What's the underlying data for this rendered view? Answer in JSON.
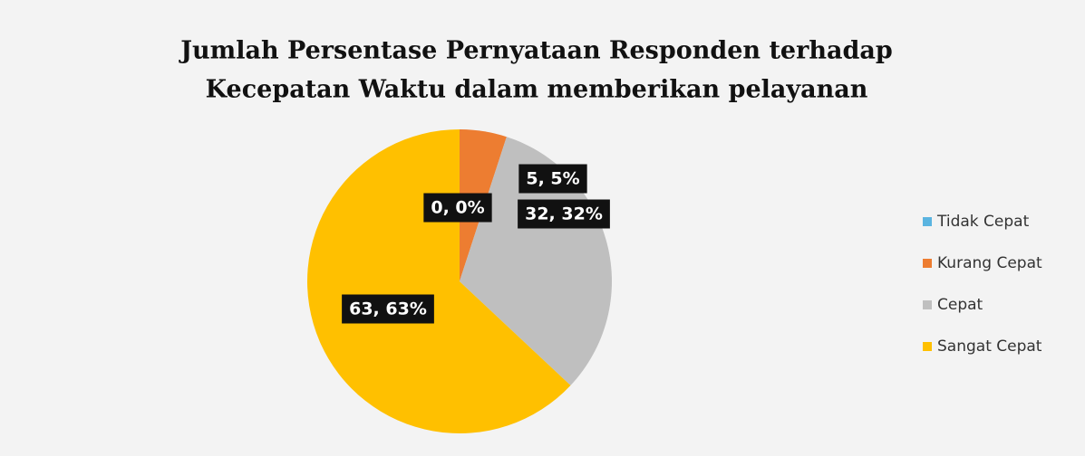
{
  "chart_data": {
    "type": "pie",
    "title": [
      "Jumlah Persentase Pernyataan Responden terhadap",
      "Kecepatan Waktu dalam memberikan pelayanan"
    ],
    "categories": [
      "Tidak Cepat",
      "Kurang Cepat",
      "Cepat",
      "Sangat Cepat"
    ],
    "values": [
      0,
      5,
      32,
      63
    ],
    "value_labels": [
      "0, 0%",
      "5, 5%",
      "32, 32%",
      "63, 63%"
    ],
    "colors": [
      "#5ab4e0",
      "#ed7d31",
      "#bfbfbf",
      "#ffc000"
    ],
    "legend": "right"
  }
}
